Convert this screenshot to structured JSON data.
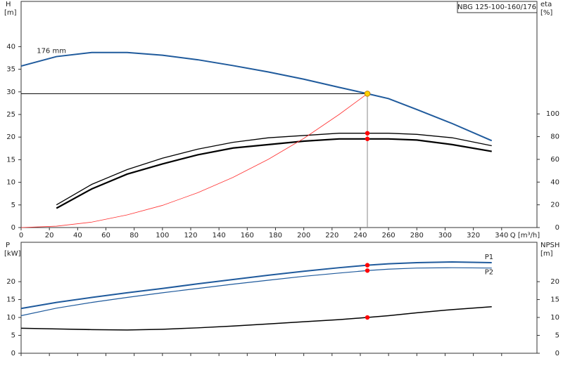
{
  "chart_data": [
    {
      "type": "line",
      "title": "NBG 125-100-160/176",
      "ylabel": "H",
      "yunit": "[m]",
      "y2label": "eta",
      "y2unit": "[%]",
      "xlabel": "Q [m³/h]",
      "x": [
        0,
        25,
        50,
        75,
        100,
        125,
        150,
        175,
        200,
        225,
        245,
        260,
        280,
        305,
        333
      ],
      "xlim": [
        0,
        365
      ],
      "xticks": [
        0,
        20,
        40,
        60,
        80,
        100,
        120,
        140,
        160,
        180,
        200,
        220,
        240,
        260,
        280,
        300,
        320,
        340
      ],
      "ylim": [
        0,
        50
      ],
      "yticks": [
        0,
        5,
        10,
        15,
        20,
        25,
        30,
        35,
        40
      ],
      "y2lim": [
        0,
        199
      ],
      "y2ticks": [
        0,
        20,
        40,
        60,
        80,
        100
      ],
      "operating_q": 245,
      "duty_head": 29.6,
      "duty_color": "#ffd200",
      "grid": false,
      "series": [
        {
          "name": "176 mm",
          "color": "#1f5a9c",
          "width": 2,
          "values": [
            35.7,
            37.8,
            38.7,
            38.7,
            38.1,
            37.1,
            35.8,
            34.4,
            32.8,
            31,
            29.6,
            28.5,
            26.1,
            23,
            19.2
          ]
        },
        {
          "color": "#000000",
          "width": 1.3,
          "axis": "y2",
          "marker_color": "#ff0000",
          "values": [
            null,
            20,
            38,
            51,
            61,
            69,
            75,
            79,
            81,
            83,
            83,
            83,
            82,
            79,
            72
          ]
        },
        {
          "color": "#000000",
          "width": 2.2,
          "axis": "y2",
          "marker_color": "#ff0000",
          "values": [
            null,
            17,
            34,
            47,
            56,
            64,
            70,
            73,
            76,
            78,
            78,
            78,
            77,
            73,
            67
          ]
        },
        {
          "color": "#ff3030",
          "width": 0.8,
          "values": [
            0,
            0.3,
            1.2,
            2.8,
            4.9,
            7.7,
            11.1,
            15.1,
            19.7,
            25,
            29.6,
            null,
            null,
            null,
            null
          ]
        }
      ]
    },
    {
      "type": "line",
      "ylabel": "P",
      "yunit": "[kW]",
      "y2label": "NPSH",
      "y2unit": "[m]",
      "x": [
        0,
        25,
        50,
        75,
        100,
        125,
        150,
        175,
        200,
        225,
        245,
        260,
        280,
        305,
        333
      ],
      "xlim": [
        0,
        365
      ],
      "xticks": [
        0,
        20,
        40,
        60,
        80,
        100,
        120,
        140,
        160,
        180,
        200,
        220,
        240,
        260,
        280,
        300,
        320,
        340
      ],
      "ylim": [
        0,
        31
      ],
      "yticks": [
        0,
        5,
        10,
        15,
        20
      ],
      "y2lim": [
        0,
        31
      ],
      "y2ticks": [
        0,
        5,
        10,
        15,
        20
      ],
      "operating_q": 245,
      "grid": false,
      "series": [
        {
          "name": "P1",
          "color": "#1f5a9c",
          "width": 2,
          "marker_color": "#ff0000",
          "values": [
            12.5,
            14.2,
            15.6,
            16.9,
            18.1,
            19.4,
            20.6,
            21.8,
            22.9,
            23.9,
            24.6,
            25,
            25.3,
            25.5,
            25.3
          ]
        },
        {
          "name": "P2",
          "color": "#1f5a9c",
          "width": 1.2,
          "marker_color": "#ff0000",
          "values": [
            10.5,
            12.6,
            14.2,
            15.6,
            16.9,
            18.1,
            19.3,
            20.4,
            21.5,
            22.4,
            23.1,
            23.5,
            23.8,
            23.9,
            23.8
          ]
        },
        {
          "color": "#000000",
          "width": 1.5,
          "axis": "y2",
          "marker_color": "#ff0000",
          "values": [
            7,
            6.8,
            6.6,
            6.5,
            6.7,
            7.1,
            7.6,
            8.2,
            8.8,
            9.4,
            10,
            10.5,
            11.3,
            12.2,
            13
          ]
        }
      ]
    }
  ]
}
